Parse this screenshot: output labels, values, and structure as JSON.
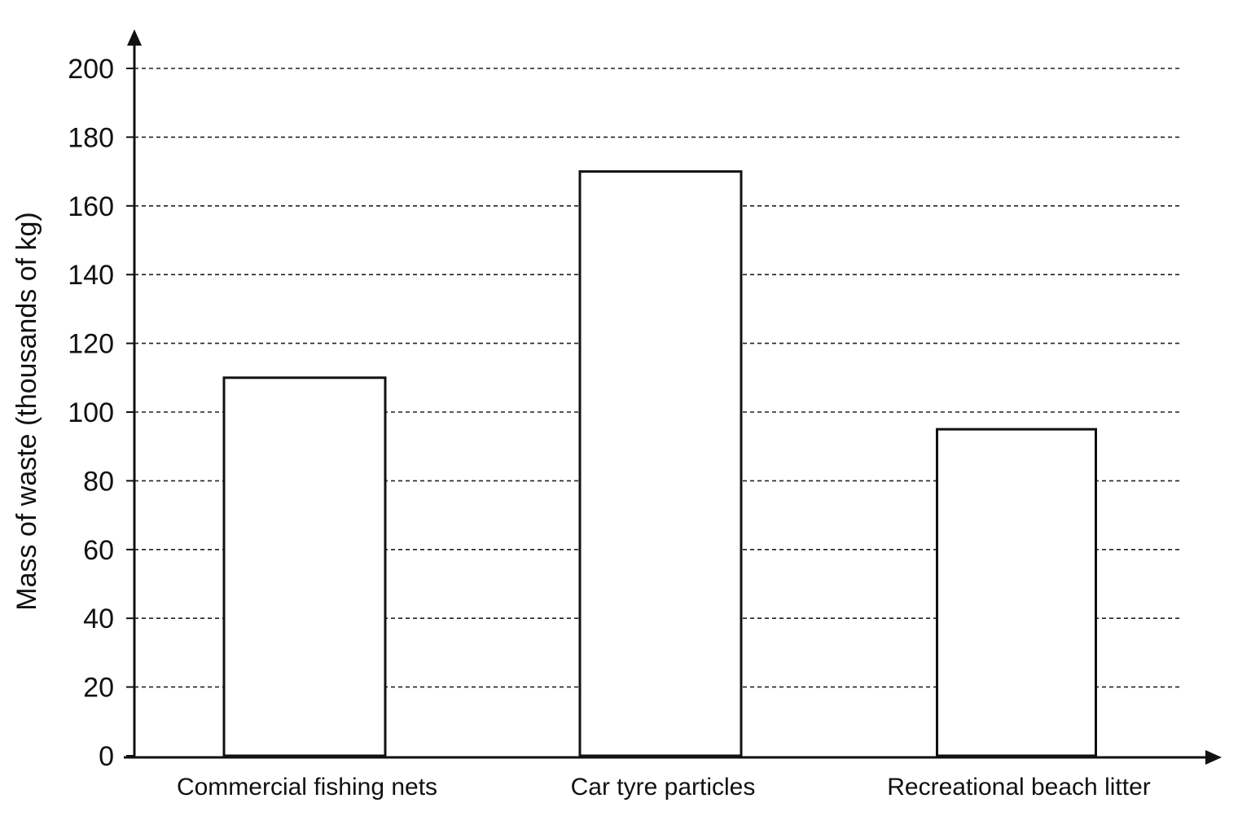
{
  "chart_data": {
    "type": "bar",
    "title": "",
    "xlabel": "",
    "ylabel": "Mass of waste (thousands of kg)",
    "categories": [
      "Commercial fishing nets",
      "Car tyre particles",
      "Recreational beach litter"
    ],
    "values": [
      110,
      170,
      95
    ],
    "ylim": [
      0,
      200
    ],
    "yticks": [
      0,
      20,
      40,
      60,
      80,
      100,
      120,
      140,
      160,
      180,
      200
    ],
    "grid": "horizontal dashed",
    "legend": "none",
    "colors": {
      "bar_fill": "#ffffff",
      "bar_stroke": "#111111",
      "axis": "#111111",
      "grid": "#222222"
    }
  }
}
